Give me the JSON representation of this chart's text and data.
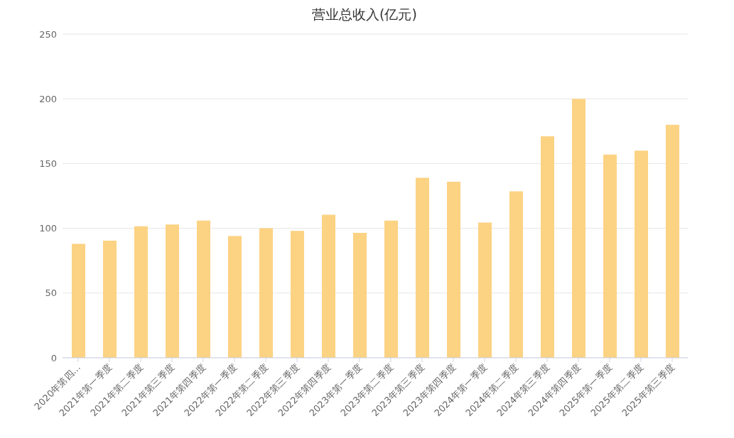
{
  "chart_data": {
    "type": "bar",
    "title": "营业总收入(亿元)",
    "categories": [
      "2020年第四…",
      "2021年第一季度",
      "2021年第二季度",
      "2021年第三季度",
      "2021年第四季度",
      "2022年第一季度",
      "2022年第二季度",
      "2022年第三季度",
      "2022年第四季度",
      "2023年第一季度",
      "2023年第二季度",
      "2023年第三季度",
      "2023年第四季度",
      "2024年第一季度",
      "2024年第二季度",
      "2024年第三季度",
      "2024年第四季度",
      "2025年第一季度",
      "2025年第二季度",
      "2025年第三季度"
    ],
    "values": [
      88,
      90.5,
      101.5,
      103,
      106,
      94,
      100,
      98,
      110.5,
      96.5,
      106,
      139,
      136,
      104.5,
      128.5,
      171,
      200,
      157,
      160,
      180
    ],
    "color": "#fcd283",
    "ylim": [
      0,
      250
    ],
    "yticks": [
      0,
      50,
      100,
      150,
      200,
      250
    ],
    "grid": "y",
    "legend": false
  }
}
